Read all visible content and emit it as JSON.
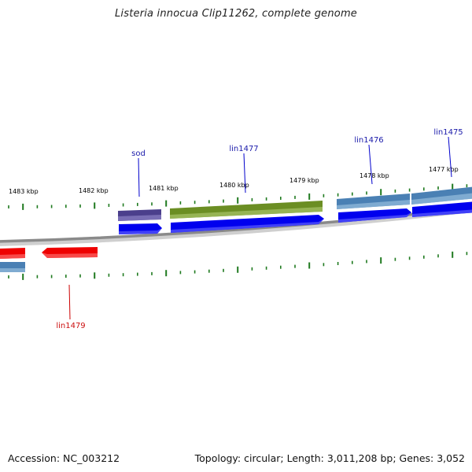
{
  "title": "Listeria innocua Clip11262, complete genome",
  "footer": {
    "accession": "Accession: NC_003212",
    "summary": "Topology: circular; Length: 3,011,208 bp; Genes: 3,052"
  },
  "colors": {
    "backbone": "#8a8a8a",
    "tick": "#1f7a1f",
    "gene_label_top": "#1a1aaa",
    "gene_label_bottom": "#cc1111",
    "cds": "#0000ee",
    "gene_steelblue": "#4a80b4",
    "gene_olive": "#6b8e23",
    "gene_slate": "#4b3f8c",
    "gene_red": "#ee0000"
  },
  "scale": {
    "unit": "kbp",
    "labels": [
      {
        "kbp": 1483,
        "text": "1483 kbp"
      },
      {
        "kbp": 1482,
        "text": "1482 kbp"
      },
      {
        "kbp": 1481,
        "text": "1481 kbp"
      },
      {
        "kbp": 1480,
        "text": "1480 kbp"
      },
      {
        "kbp": 1479,
        "text": "1479 kbp"
      },
      {
        "kbp": 1478,
        "text": "1478 kbp"
      },
      {
        "kbp": 1477,
        "text": "1477 kbp"
      }
    ]
  },
  "gene_labels": [
    {
      "name": "sod",
      "strand": "top"
    },
    {
      "name": "lin1477",
      "strand": "top"
    },
    {
      "name": "lin1476",
      "strand": "top"
    },
    {
      "name": "lin1475",
      "strand": "top"
    },
    {
      "name": "lin1479",
      "strand": "bottom"
    }
  ]
}
